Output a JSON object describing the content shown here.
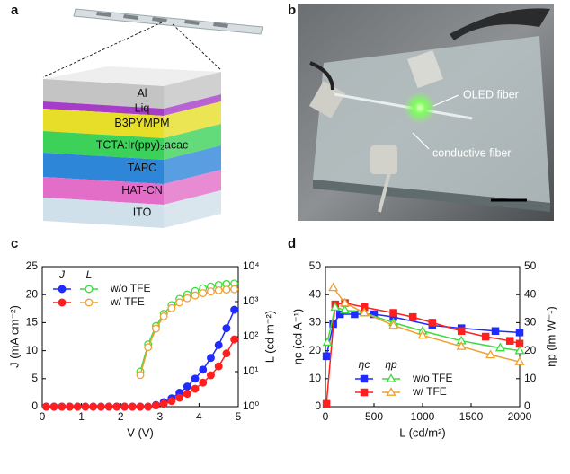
{
  "panels": {
    "a": {
      "label": "a",
      "layers": [
        "Al",
        "Liq",
        "B3PYMPM",
        "TCTA:Ir(ppy)₂acac",
        "TAPC",
        "HAT-CN",
        "ITO"
      ]
    },
    "b": {
      "label": "b",
      "annotations": [
        "OLED fiber",
        "conductive fiber"
      ]
    },
    "c": {
      "label": "c"
    },
    "d": {
      "label": "d"
    }
  },
  "chart_data": [
    {
      "type": "line",
      "xlabel": "V (V)",
      "ylabel": "J (mA cm⁻²)",
      "y2label": "L (cd m⁻²)",
      "xlim": [
        0,
        5
      ],
      "xticks": [
        0,
        1,
        2,
        3,
        4,
        5
      ],
      "ylim": [
        0,
        25
      ],
      "yticks": [
        0,
        5,
        10,
        15,
        20,
        25
      ],
      "y2lim": [
        1,
        10000
      ],
      "y2log": true,
      "y2ticks": [
        {
          "value": 1,
          "label": "10⁰"
        },
        {
          "value": 10,
          "label": "10¹"
        },
        {
          "value": 100,
          "label": "10²"
        },
        {
          "value": 1000,
          "label": "10³"
        },
        {
          "value": 10000,
          "label": "10⁴"
        }
      ],
      "legend_headers": [
        "J",
        "L"
      ],
      "legend_position": "upper left",
      "x": [
        0.1,
        0.3,
        0.5,
        0.7,
        0.9,
        1.1,
        1.3,
        1.5,
        1.7,
        1.9,
        2.1,
        2.3,
        2.5,
        2.7,
        2.9,
        3.1,
        3.3,
        3.5,
        3.7,
        3.9,
        4.1,
        4.3,
        4.5,
        4.7,
        4.9
      ],
      "series": [
        {
          "name": "w/o TFE",
          "color": "#1f2bff",
          "marker": "circle",
          "filled": true,
          "values": [
            0,
            0,
            0,
            0,
            0,
            0,
            0,
            0,
            0,
            0,
            0,
            0,
            0,
            0,
            0.3,
            0.8,
            1.5,
            2.5,
            3.6,
            5,
            6.6,
            8.7,
            11,
            14,
            17.3
          ]
        },
        {
          "name": "w/ TFE",
          "color": "#ff1f1f",
          "marker": "circle",
          "filled": true,
          "values": [
            0,
            0,
            0,
            0,
            0,
            0,
            0,
            0,
            0,
            0,
            0,
            0,
            0,
            0,
            0.2,
            0.5,
            1,
            1.6,
            2.3,
            3.2,
            4.3,
            5.6,
            7.2,
            9.5,
            12
          ]
        },
        {
          "name": "w/o TFE",
          "color": "#3bdc3b",
          "marker": "circle",
          "filled": false,
          "axis": "y2",
          "values": [
            null,
            null,
            null,
            null,
            null,
            null,
            null,
            null,
            null,
            null,
            null,
            null,
            10,
            60,
            200,
            450,
            800,
            1200,
            1600,
            2000,
            2400,
            2700,
            3000,
            3200,
            3300
          ]
        },
        {
          "name": "w/ TFE",
          "color": "#f0a030",
          "marker": "circle",
          "filled": false,
          "axis": "y2",
          "values": [
            null,
            null,
            null,
            null,
            null,
            null,
            null,
            null,
            null,
            null,
            null,
            null,
            8,
            50,
            170,
            380,
            650,
            950,
            1250,
            1500,
            1750,
            1950,
            2100,
            2200,
            2250
          ]
        }
      ]
    },
    {
      "type": "line",
      "xlabel": "L (cd/m²)",
      "ylabel": "ηc (cd A⁻¹)",
      "y2label": "ηp (lm W⁻¹)",
      "xlim": [
        0,
        2000
      ],
      "xticks": [
        0,
        500,
        1000,
        1500,
        2000
      ],
      "ylim": [
        0,
        50
      ],
      "yticks": [
        0,
        10,
        20,
        30,
        40,
        50
      ],
      "y2lim": [
        0,
        50
      ],
      "y2ticks": [
        0,
        10,
        20,
        30,
        40,
        50
      ],
      "legend_headers": [
        "ηc",
        "ηp"
      ],
      "legend_position": "lower center",
      "series": [
        {
          "name": "w/o TFE",
          "color": "#1f2bff",
          "marker": "square",
          "filled": true,
          "x": [
            10,
            80,
            150,
            300,
            500,
            700,
            1100,
            1400,
            1750,
            2000
          ],
          "values": [
            18,
            29.5,
            33,
            33,
            33,
            32,
            29,
            28,
            27,
            26.5
          ]
        },
        {
          "name": "w/ TFE",
          "color": "#ff1f1f",
          "marker": "square",
          "filled": true,
          "x": [
            10,
            100,
            200,
            400,
            700,
            900,
            1100,
            1400,
            1650,
            1900,
            2000
          ],
          "values": [
            1,
            36.5,
            37,
            35.5,
            33.5,
            32,
            30,
            27,
            25,
            23.5,
            22.5
          ]
        },
        {
          "name": "w/o TFE",
          "color": "#3bdc3b",
          "marker": "triangle",
          "filled": false,
          "axis": "y2",
          "x": [
            20,
            100,
            200,
            400,
            700,
            1000,
            1400,
            1800,
            2000
          ],
          "values": [
            23,
            35.5,
            34.5,
            33.5,
            30,
            27,
            23.5,
            21,
            20
          ]
        },
        {
          "name": "w/ TFE",
          "color": "#f0a030",
          "marker": "triangle",
          "filled": false,
          "axis": "y2",
          "x": [
            80,
            200,
            400,
            700,
            1000,
            1400,
            1700,
            2000
          ],
          "values": [
            42.5,
            37,
            33.5,
            29,
            25.5,
            21.5,
            18.5,
            16
          ]
        }
      ]
    }
  ]
}
